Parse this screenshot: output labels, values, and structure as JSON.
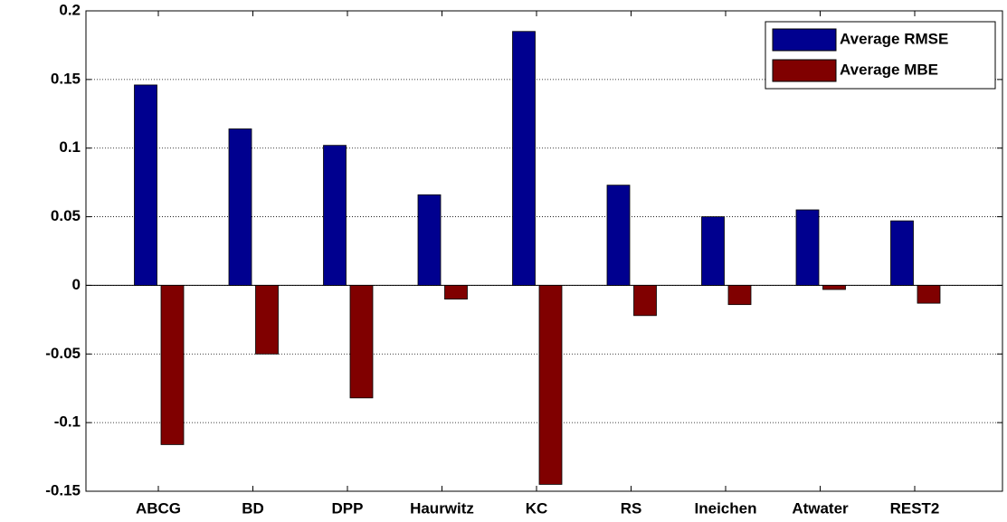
{
  "chart_data": {
    "type": "bar",
    "categories": [
      "ABCG",
      "BD",
      "DPP",
      "Haurwitz",
      "KC",
      "RS",
      "Ineichen",
      "Atwater",
      "REST2"
    ],
    "series": [
      {
        "name": "Average RMSE",
        "color": "#00008f",
        "values": [
          0.146,
          0.114,
          0.102,
          0.066,
          0.185,
          0.073,
          0.05,
          0.055,
          0.047
        ]
      },
      {
        "name": "Average MBE",
        "color": "#800000",
        "values": [
          -0.116,
          -0.05,
          -0.082,
          -0.01,
          -0.145,
          -0.022,
          -0.014,
          -0.003,
          -0.013
        ]
      }
    ],
    "ylim": [
      -0.15,
      0.2
    ],
    "yticks": [
      -0.15,
      -0.1,
      -0.05,
      0,
      0.05,
      0.1,
      0.15,
      0.2
    ],
    "grid": true,
    "legend": "upper right"
  }
}
